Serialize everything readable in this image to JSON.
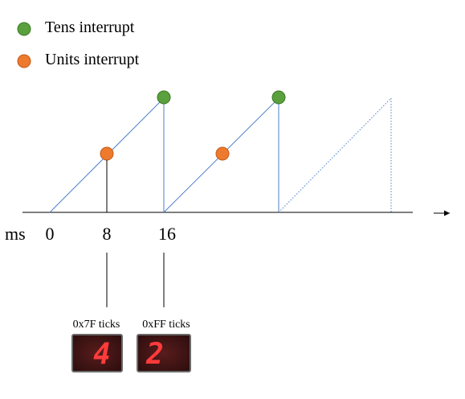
{
  "legend": {
    "items": [
      {
        "label": "Tens interrupt",
        "color": "#5aa03c",
        "icon": "green-circle-icon"
      },
      {
        "label": "Units interrupt",
        "color": "#ee7a2e",
        "icon": "orange-circle-icon"
      }
    ]
  },
  "axis": {
    "unit_label": "ms",
    "ticks": [
      "0",
      "8",
      "16"
    ]
  },
  "counters": [
    {
      "label": "0x7F ticks",
      "digit": "4"
    },
    {
      "label": "0xFF ticks",
      "digit": "2"
    }
  ],
  "colors": {
    "ramp": "#4f7fc6",
    "axis": "#000000",
    "display_bg": "#3a1414",
    "display_digit": "#ff3b3b"
  }
}
